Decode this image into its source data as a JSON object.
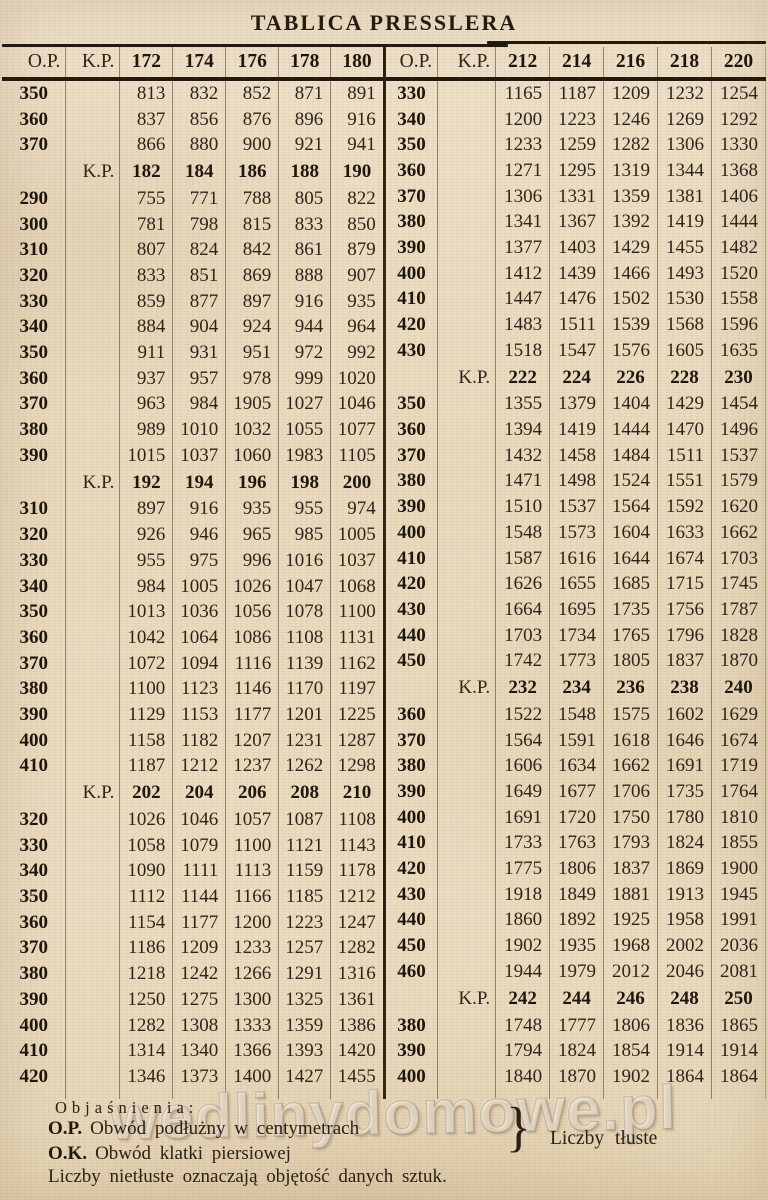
{
  "title": "TABLICA PRESSLERA",
  "left_table": {
    "headers": [
      "O.P.",
      "K.P.",
      "172",
      "174",
      "176",
      "178",
      "180"
    ],
    "rows": [
      {
        "op": "350",
        "v": [
          "813",
          "832",
          "852",
          "871",
          "891"
        ]
      },
      {
        "op": "360",
        "v": [
          "837",
          "856",
          "876",
          "896",
          "916"
        ]
      },
      {
        "op": "370",
        "v": [
          "866",
          "880",
          "900",
          "921",
          "941"
        ]
      },
      {
        "kp": "K.P.",
        "v": [
          "182",
          "184",
          "186",
          "188",
          "190"
        ]
      },
      {
        "op": "290",
        "v": [
          "755",
          "771",
          "788",
          "805",
          "822"
        ]
      },
      {
        "op": "300",
        "v": [
          "781",
          "798",
          "815",
          "833",
          "850"
        ]
      },
      {
        "op": "310",
        "v": [
          "807",
          "824",
          "842",
          "861",
          "879"
        ]
      },
      {
        "op": "320",
        "v": [
          "833",
          "851",
          "869",
          "888",
          "907"
        ]
      },
      {
        "op": "330",
        "v": [
          "859",
          "877",
          "897",
          "916",
          "935"
        ]
      },
      {
        "op": "340",
        "v": [
          "884",
          "904",
          "924",
          "944",
          "964"
        ]
      },
      {
        "op": "350",
        "v": [
          "911",
          "931",
          "951",
          "972",
          "992"
        ]
      },
      {
        "op": "360",
        "v": [
          "937",
          "957",
          "978",
          "999",
          "1020"
        ]
      },
      {
        "op": "370",
        "v": [
          "963",
          "984",
          "1905",
          "1027",
          "1046"
        ]
      },
      {
        "op": "380",
        "v": [
          "989",
          "1010",
          "1032",
          "1055",
          "1077"
        ]
      },
      {
        "op": "390",
        "v": [
          "1015",
          "1037",
          "1060",
          "1983",
          "1105"
        ]
      },
      {
        "kp": "K.P.",
        "v": [
          "192",
          "194",
          "196",
          "198",
          "200"
        ]
      },
      {
        "op": "310",
        "v": [
          "897",
          "916",
          "935",
          "955",
          "974"
        ]
      },
      {
        "op": "320",
        "v": [
          "926",
          "946",
          "965",
          "985",
          "1005"
        ]
      },
      {
        "op": "330",
        "v": [
          "955",
          "975",
          "996",
          "1016",
          "1037"
        ]
      },
      {
        "op": "340",
        "v": [
          "984",
          "1005",
          "1026",
          "1047",
          "1068"
        ]
      },
      {
        "op": "350",
        "v": [
          "1013",
          "1036",
          "1056",
          "1078",
          "1100"
        ]
      },
      {
        "op": "360",
        "v": [
          "1042",
          "1064",
          "1086",
          "1108",
          "1131"
        ]
      },
      {
        "op": "370",
        "v": [
          "1072",
          "1094",
          "1116",
          "1139",
          "1162"
        ]
      },
      {
        "op": "380",
        "v": [
          "1100",
          "1123",
          "1146",
          "1170",
          "1197"
        ]
      },
      {
        "op": "390",
        "v": [
          "1129",
          "1153",
          "1177",
          "1201",
          "1225"
        ]
      },
      {
        "op": "400",
        "v": [
          "1158",
          "1182",
          "1207",
          "1231",
          "1287"
        ]
      },
      {
        "op": "410",
        "v": [
          "1187",
          "1212",
          "1237",
          "1262",
          "1298"
        ]
      },
      {
        "kp": "K.P.",
        "v": [
          "202",
          "204",
          "206",
          "208",
          "210"
        ]
      },
      {
        "op": "320",
        "v": [
          "1026",
          "1046",
          "1057",
          "1087",
          "1108"
        ]
      },
      {
        "op": "330",
        "v": [
          "1058",
          "1079",
          "1100",
          "1121",
          "1143"
        ]
      },
      {
        "op": "340",
        "v": [
          "1090",
          "1111",
          "1113",
          "1159",
          "1178"
        ]
      },
      {
        "op": "350",
        "v": [
          "1112",
          "1144",
          "1166",
          "1185",
          "1212"
        ]
      },
      {
        "op": "360",
        "v": [
          "1154",
          "1177",
          "1200",
          "1223",
          "1247"
        ]
      },
      {
        "op": "370",
        "v": [
          "1186",
          "1209",
          "1233",
          "1257",
          "1282"
        ]
      },
      {
        "op": "380",
        "v": [
          "1218",
          "1242",
          "1266",
          "1291",
          "1316"
        ]
      },
      {
        "op": "390",
        "v": [
          "1250",
          "1275",
          "1300",
          "1325",
          "1361"
        ]
      },
      {
        "op": "400",
        "v": [
          "1282",
          "1308",
          "1333",
          "1359",
          "1386"
        ]
      },
      {
        "op": "410",
        "v": [
          "1314",
          "1340",
          "1366",
          "1393",
          "1420"
        ]
      },
      {
        "op": "420",
        "v": [
          "1346",
          "1373",
          "1400",
          "1427",
          "1455"
        ]
      }
    ]
  },
  "right_table": {
    "headers": [
      "O.P.",
      "K.P.",
      "212",
      "214",
      "216",
      "218",
      "220"
    ],
    "rows": [
      {
        "op": "330",
        "v": [
          "1165",
          "1187",
          "1209",
          "1232",
          "1254"
        ]
      },
      {
        "op": "340",
        "v": [
          "1200",
          "1223",
          "1246",
          "1269",
          "1292"
        ]
      },
      {
        "op": "350",
        "v": [
          "1233",
          "1259",
          "1282",
          "1306",
          "1330"
        ]
      },
      {
        "op": "360",
        "v": [
          "1271",
          "1295",
          "1319",
          "1344",
          "1368"
        ]
      },
      {
        "op": "370",
        "v": [
          "1306",
          "1331",
          "1359",
          "1381",
          "1406"
        ]
      },
      {
        "op": "380",
        "v": [
          "1341",
          "1367",
          "1392",
          "1419",
          "1444"
        ]
      },
      {
        "op": "390",
        "v": [
          "1377",
          "1403",
          "1429",
          "1455",
          "1482"
        ]
      },
      {
        "op": "400",
        "v": [
          "1412",
          "1439",
          "1466",
          "1493",
          "1520"
        ]
      },
      {
        "op": "410",
        "v": [
          "1447",
          "1476",
          "1502",
          "1530",
          "1558"
        ]
      },
      {
        "op": "420",
        "v": [
          "1483",
          "1511",
          "1539",
          "1568",
          "1596"
        ]
      },
      {
        "op": "430",
        "v": [
          "1518",
          "1547",
          "1576",
          "1605",
          "1635"
        ]
      },
      {
        "kp": "K.P.",
        "v": [
          "222",
          "224",
          "226",
          "228",
          "230"
        ]
      },
      {
        "op": "350",
        "v": [
          "1355",
          "1379",
          "1404",
          "1429",
          "1454"
        ]
      },
      {
        "op": "360",
        "v": [
          "1394",
          "1419",
          "1444",
          "1470",
          "1496"
        ]
      },
      {
        "op": "370",
        "v": [
          "1432",
          "1458",
          "1484",
          "1511",
          "1537"
        ]
      },
      {
        "op": "380",
        "v": [
          "1471",
          "1498",
          "1524",
          "1551",
          "1579"
        ]
      },
      {
        "op": "390",
        "v": [
          "1510",
          "1537",
          "1564",
          "1592",
          "1620"
        ]
      },
      {
        "op": "400",
        "v": [
          "1548",
          "1573",
          "1604",
          "1633",
          "1662"
        ]
      },
      {
        "op": "410",
        "v": [
          "1587",
          "1616",
          "1644",
          "1674",
          "1703"
        ]
      },
      {
        "op": "420",
        "v": [
          "1626",
          "1655",
          "1685",
          "1715",
          "1745"
        ]
      },
      {
        "op": "430",
        "v": [
          "1664",
          "1695",
          "1735",
          "1756",
          "1787"
        ]
      },
      {
        "op": "440",
        "v": [
          "1703",
          "1734",
          "1765",
          "1796",
          "1828"
        ]
      },
      {
        "op": "450",
        "v": [
          "1742",
          "1773",
          "1805",
          "1837",
          "1870"
        ]
      },
      {
        "kp": "K.P.",
        "v": [
          "232",
          "234",
          "236",
          "238",
          "240"
        ]
      },
      {
        "op": "360",
        "v": [
          "1522",
          "1548",
          "1575",
          "1602",
          "1629"
        ]
      },
      {
        "op": "370",
        "v": [
          "1564",
          "1591",
          "1618",
          "1646",
          "1674"
        ]
      },
      {
        "op": "380",
        "v": [
          "1606",
          "1634",
          "1662",
          "1691",
          "1719"
        ]
      },
      {
        "op": "390",
        "v": [
          "1649",
          "1677",
          "1706",
          "1735",
          "1764"
        ]
      },
      {
        "op": "400",
        "v": [
          "1691",
          "1720",
          "1750",
          "1780",
          "1810"
        ]
      },
      {
        "op": "410",
        "v": [
          "1733",
          "1763",
          "1793",
          "1824",
          "1855"
        ]
      },
      {
        "op": "420",
        "v": [
          "1775",
          "1806",
          "1837",
          "1869",
          "1900"
        ]
      },
      {
        "op": "430",
        "v": [
          "1918",
          "1849",
          "1881",
          "1913",
          "1945"
        ]
      },
      {
        "op": "440",
        "v": [
          "1860",
          "1892",
          "1925",
          "1958",
          "1991"
        ]
      },
      {
        "op": "450",
        "v": [
          "1902",
          "1935",
          "1968",
          "2002",
          "2036"
        ]
      },
      {
        "op": "460",
        "v": [
          "1944",
          "1979",
          "2012",
          "2046",
          "2081"
        ]
      },
      {
        "kp": "K.P.",
        "v": [
          "242",
          "244",
          "246",
          "248",
          "250"
        ]
      },
      {
        "op": "380",
        "v": [
          "1748",
          "1777",
          "1806",
          "1836",
          "1865"
        ]
      },
      {
        "op": "390",
        "v": [
          "1794",
          "1824",
          "1854",
          "1914",
          "1914"
        ]
      },
      {
        "op": "400",
        "v": [
          "1840",
          "1870",
          "1902",
          "1864",
          "1864"
        ]
      }
    ]
  },
  "footer": {
    "heading": "Objaśnienia:",
    "op_label": "O.P.",
    "op_text": "Obwód podłużny w centymetrach",
    "ok_label": "O.K.",
    "ok_text": "Obwód klatki piersiowej",
    "brace": "}",
    "brace_note": "Liczby tłuste",
    "note": "Liczby nietłuste oznaczają objętość danych sztuk."
  },
  "watermark": "wedlinydomowe.pl",
  "colors": {
    "paper": "#e9d9bd",
    "ink": "#2c2318",
    "rule": "#221a10"
  }
}
